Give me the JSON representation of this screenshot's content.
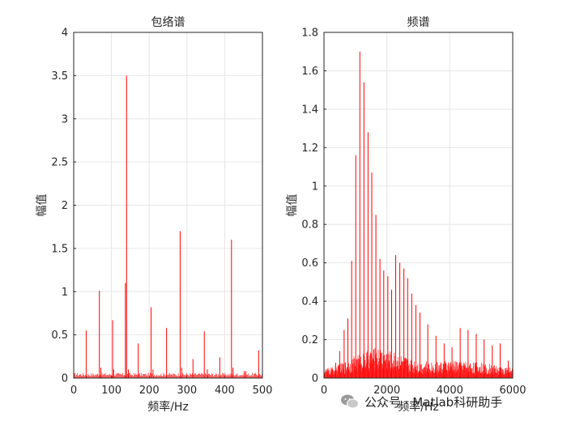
{
  "chart_data": [
    {
      "type": "line",
      "title": "包络谱",
      "xlabel": "频率/Hz",
      "ylabel": "幅值",
      "xlim": [
        0,
        500
      ],
      "ylim": [
        0,
        4
      ],
      "xticks": [
        "0",
        "100",
        "200",
        "300",
        "400",
        "500"
      ],
      "yticks": [
        "0",
        "0.5",
        "1",
        "1.5",
        "2",
        "2.5",
        "3",
        "3.5",
        "4"
      ],
      "grid": true,
      "series": [
        {
          "color": "#ff0000",
          "x": [
            33,
            68,
            72,
            103,
            106,
            137,
            140,
            145,
            171,
            205,
            210,
            246,
            282,
            286,
            316,
            346,
            354,
            387,
            418,
            422,
            452,
            456,
            490
          ],
          "values": [
            0.55,
            1.01,
            0.12,
            0.67,
            0.1,
            1.1,
            3.5,
            0.1,
            0.4,
            0.82,
            0.1,
            0.58,
            1.7,
            0.12,
            0.22,
            0.54,
            0.1,
            0.24,
            1.6,
            0.12,
            0.08,
            0.08,
            0.32
          ]
        }
      ]
    },
    {
      "type": "line",
      "title": "频谱",
      "xlabel": "频率/Hz",
      "ylabel": "幅值",
      "xlim": [
        0,
        6000
      ],
      "ylim": [
        0,
        1.8
      ],
      "xticks": [
        "0",
        "2000",
        "4000",
        "6000"
      ],
      "yticks": [
        "0",
        "0.2",
        "0.4",
        "0.6",
        "0.8",
        "1",
        "1.2",
        "1.4",
        "1.6",
        "1.8"
      ],
      "grid": true,
      "series": [
        {
          "color": "#ff0000",
          "x": [
            250,
            370,
            500,
            640,
            760,
            880,
            1010,
            1140,
            1270,
            1400,
            1520,
            1650,
            1780,
            1900,
            2030,
            2150,
            2280,
            2410,
            2540,
            2660,
            2790,
            2920,
            3050,
            3300,
            3560,
            3820,
            4070,
            4330,
            4580,
            4840,
            5090,
            5350,
            5600,
            5860
          ],
          "values": [
            0.05,
            0.08,
            0.14,
            0.25,
            0.31,
            0.61,
            1.16,
            1.7,
            1.54,
            1.28,
            1.07,
            0.85,
            0.62,
            0.56,
            0.53,
            0.46,
            0.64,
            0.6,
            0.57,
            0.52,
            0.44,
            0.38,
            0.34,
            0.28,
            0.22,
            0.18,
            0.16,
            0.26,
            0.25,
            0.23,
            0.2,
            0.17,
            0.18,
            0.09
          ]
        }
      ]
    }
  ],
  "watermark": {
    "text": "公众号 · Matlab科研助手",
    "icon": "wechat-icon"
  }
}
